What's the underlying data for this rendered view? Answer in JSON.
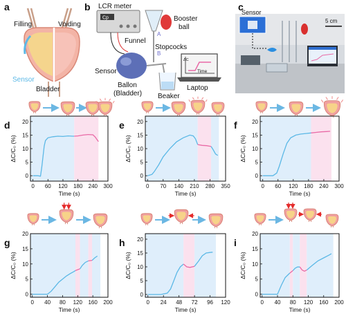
{
  "labels": {
    "a": {
      "letter": "a",
      "filling": "Filling",
      "voiding": "Voiding",
      "sensor": "Sensor",
      "bladder": "Bladder"
    },
    "b": {
      "letter": "b",
      "lcr": "LCR meter",
      "cp": "Cp",
      "funnel": "Funnel",
      "booster": "Booster",
      "ball": "ball",
      "A": "A",
      "B": "B",
      "stopcocks": "Stopcocks",
      "sensor": "Sensor",
      "ballon": "Ballon",
      "bladder": "(Bladder)",
      "beaker": "Beaker",
      "laptop": "Laptop",
      "time": "Time",
      "dc": "ΔC"
    },
    "c": {
      "letter": "c",
      "sensor": "Sensor",
      "scale": "5 cm"
    }
  },
  "colors": {
    "blue_line": "#5bb8e6",
    "pink_line": "#e96aa6",
    "blue_shade": "#dfeefb",
    "pink_shade": "#fbe1ee",
    "arrow": "#6bb7e3",
    "organ": "#f0a0a0",
    "organ_inner": "#f7d389",
    "press": "#e52b2b"
  },
  "chart_data": [
    {
      "id": "d",
      "type": "line",
      "ylabel": "ΔC/C₀ (%)",
      "xlabel": "Time (s)",
      "xlim": [
        -10,
        300
      ],
      "ylim": [
        -2,
        22
      ],
      "xticks": [
        0,
        60,
        120,
        180,
        240,
        300
      ],
      "yticks": [
        0,
        5,
        10,
        15,
        20
      ],
      "shade": [
        {
          "from": -10,
          "to": 165,
          "color": "blue"
        },
        {
          "from": 165,
          "to": 262,
          "color": "pink"
        }
      ],
      "series": [
        {
          "color": "blue",
          "x": [
            0,
            20,
            30,
            35,
            40,
            45,
            50,
            60,
            80,
            100,
            120,
            140,
            160,
            165
          ],
          "y": [
            0,
            0,
            -0.2,
            3,
            7,
            11,
            13,
            14,
            14.4,
            14.6,
            14.5,
            14.7,
            14.6,
            14.6
          ]
        },
        {
          "color": "pink",
          "x": [
            165,
            180,
            200,
            220,
            240,
            250,
            255,
            262
          ],
          "y": [
            14.6,
            14.7,
            15,
            15.2,
            15.1,
            14.2,
            13.5,
            12.6
          ]
        }
      ]
    },
    {
      "id": "e",
      "type": "line",
      "ylabel": "ΔC/C₀ (%)",
      "xlabel": "Time (s)",
      "xlim": [
        -10,
        350
      ],
      "ylim": [
        -2,
        22
      ],
      "xticks": [
        0,
        70,
        140,
        210,
        280,
        350
      ],
      "yticks": [
        0,
        5,
        10,
        15,
        20
      ],
      "shade": [
        {
          "from": -10,
          "to": 225,
          "color": "blue"
        },
        {
          "from": 225,
          "to": 285,
          "color": "pink"
        },
        {
          "from": 285,
          "to": 320,
          "color": "blue"
        }
      ],
      "series": [
        {
          "color": "blue",
          "x": [
            0,
            20,
            30,
            50,
            70,
            100,
            130,
            160,
            190,
            205,
            215,
            225
          ],
          "y": [
            0,
            0.5,
            1.5,
            4,
            7,
            10,
            12.5,
            14,
            15,
            14.7,
            13.6,
            11.5
          ]
        },
        {
          "color": "pink",
          "x": [
            225,
            245,
            265,
            285
          ],
          "y": [
            11.5,
            11.2,
            11.1,
            10.8
          ]
        },
        {
          "color": "blue",
          "x": [
            285,
            295,
            305,
            315
          ],
          "y": [
            10.8,
            9.5,
            8,
            7.5
          ]
        }
      ]
    },
    {
      "id": "f",
      "type": "line",
      "ylabel": "ΔC/C₀ (%)",
      "xlabel": "Time (s)",
      "xlim": [
        -10,
        300
      ],
      "ylim": [
        -2,
        22
      ],
      "xticks": [
        0,
        60,
        120,
        180,
        240,
        300
      ],
      "yticks": [
        0,
        5,
        10,
        15,
        20
      ],
      "shade": [
        {
          "from": -10,
          "to": 190,
          "color": "blue"
        },
        {
          "from": 190,
          "to": 270,
          "color": "pink"
        }
      ],
      "series": [
        {
          "color": "blue",
          "x": [
            0,
            40,
            55,
            65,
            80,
            95,
            110,
            130,
            150,
            170,
            190
          ],
          "y": [
            0,
            0,
            1,
            3.5,
            8,
            12,
            14,
            15,
            15.4,
            15.6,
            15.8
          ]
        },
        {
          "color": "pink",
          "x": [
            190,
            210,
            230,
            250,
            265
          ],
          "y": [
            15.8,
            16,
            16.2,
            16.3,
            16.4
          ]
        }
      ]
    },
    {
      "id": "g",
      "type": "line",
      "ylabel": "ΔC/C₀ (%)",
      "xlabel": "Time (s)",
      "xlim": [
        -5,
        200
      ],
      "ylim": [
        -1,
        20
      ],
      "xticks": [
        0,
        40,
        80,
        120,
        160,
        200
      ],
      "yticks": [
        0,
        5,
        10,
        15,
        20
      ],
      "shade": [
        {
          "from": -5,
          "to": 114,
          "color": "blue"
        },
        {
          "from": 114,
          "to": 126,
          "color": "pink"
        },
        {
          "from": 126,
          "to": 148,
          "color": "blue"
        },
        {
          "from": 148,
          "to": 158,
          "color": "pink"
        },
        {
          "from": 158,
          "to": 180,
          "color": "blue"
        }
      ],
      "series": [
        {
          "color": "blue",
          "x": [
            0,
            20,
            40,
            50,
            60,
            70,
            80,
            90,
            100,
            110,
            114
          ],
          "y": [
            0,
            0,
            0,
            1,
            2.5,
            4,
            5,
            6,
            6.8,
            7.5,
            7.8
          ]
        },
        {
          "color": "pink",
          "x": [
            114,
            120,
            126
          ],
          "y": [
            7.8,
            8.1,
            8.4
          ]
        },
        {
          "color": "blue",
          "x": [
            126,
            132,
            140,
            148
          ],
          "y": [
            8.4,
            9.5,
            10.5,
            11
          ]
        },
        {
          "color": "pink",
          "x": [
            148,
            153,
            158
          ],
          "y": [
            11,
            11.1,
            11.2
          ]
        },
        {
          "color": "blue",
          "x": [
            158,
            165,
            172
          ],
          "y": [
            11.2,
            12,
            12.6
          ]
        }
      ]
    },
    {
      "id": "h",
      "type": "line",
      "ylabel": "ΔC/C₀ (%)",
      "xlabel": "Time (s)",
      "xlim": [
        -4,
        120
      ],
      "ylim": [
        -1,
        22
      ],
      "xticks": [
        0,
        24,
        48,
        72,
        96,
        120
      ],
      "yticks": [
        0,
        5,
        10,
        15,
        20
      ],
      "shade": [
        {
          "from": -4,
          "to": 55,
          "color": "blue"
        },
        {
          "from": 55,
          "to": 72,
          "color": "pink"
        },
        {
          "from": 72,
          "to": 105,
          "color": "blue"
        }
      ],
      "series": [
        {
          "color": "blue",
          "x": [
            0,
            20,
            30,
            35,
            40,
            45,
            50,
            55
          ],
          "y": [
            0,
            0,
            0.5,
            2,
            5,
            8,
            10,
            11
          ]
        },
        {
          "color": "pink",
          "x": [
            55,
            60,
            65,
            72
          ],
          "y": [
            11,
            10,
            9.8,
            10.2
          ]
        },
        {
          "color": "blue",
          "x": [
            72,
            78,
            84,
            90,
            96,
            100
          ],
          "y": [
            10.2,
            12,
            14,
            15,
            15.2,
            15.3
          ]
        }
      ]
    },
    {
      "id": "i",
      "type": "line",
      "ylabel": "ΔC/C₀ (%)",
      "xlabel": "Time (s)",
      "xlim": [
        -5,
        200
      ],
      "ylim": [
        -1,
        20
      ],
      "xticks": [
        0,
        40,
        80,
        120,
        160,
        200
      ],
      "yticks": [
        0,
        5,
        10,
        15,
        20
      ],
      "shade": [
        {
          "from": -5,
          "to": 72,
          "color": "blue"
        },
        {
          "from": 72,
          "to": 80,
          "color": "pink"
        },
        {
          "from": 80,
          "to": 98,
          "color": "blue"
        },
        {
          "from": 98,
          "to": 116,
          "color": "pink"
        },
        {
          "from": 116,
          "to": 185,
          "color": "blue"
        }
      ],
      "series": [
        {
          "color": "blue",
          "x": [
            0,
            20,
            40,
            50,
            60,
            72
          ],
          "y": [
            0,
            0,
            0,
            3,
            5.5,
            7
          ]
        },
        {
          "color": "pink",
          "x": [
            72,
            76,
            80
          ],
          "y": [
            7,
            7.4,
            7.8
          ]
        },
        {
          "color": "blue",
          "x": [
            80,
            86,
            92,
            98
          ],
          "y": [
            7.8,
            8.6,
            9,
            9
          ]
        },
        {
          "color": "pink",
          "x": [
            98,
            104,
            110,
            116
          ],
          "y": [
            9,
            8,
            7.6,
            8
          ]
        },
        {
          "color": "blue",
          "x": [
            116,
            130,
            145,
            160,
            175,
            180
          ],
          "y": [
            8,
            9.5,
            11,
            12,
            13,
            13.4
          ]
        }
      ]
    }
  ]
}
